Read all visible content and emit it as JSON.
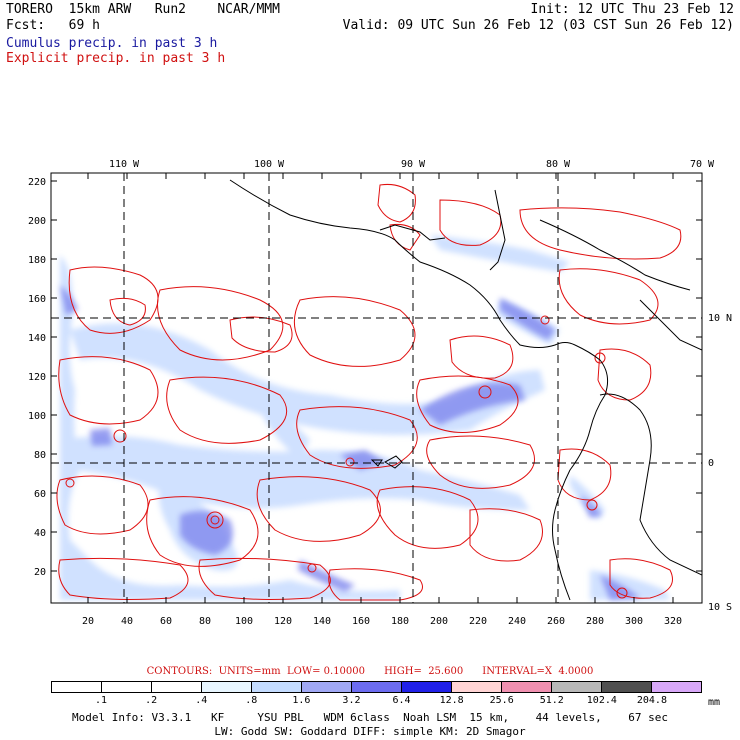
{
  "header": {
    "left_line1": "TORERO  15km ARW   Run2    NCAR/MMM",
    "left_line2": "Fcst:   69 h",
    "right_line1": "Init: 12 UTC Thu 23 Feb 12",
    "right_line2": "Valid: 09 UTC Sun 26 Feb 12 (03 CST Sun 26 Feb 12)",
    "cumulus_label": "Cumulus precip. in past 3 h",
    "explicit_label": "Explicit precip. in past 3 h"
  },
  "map": {
    "top_longitudes": [
      "110 W",
      "100 W",
      "90 W",
      "80 W",
      "70 W"
    ],
    "right_latitudes": [
      "10 N",
      "0",
      "10 S"
    ],
    "y_ticks": [
      "220",
      "200",
      "180",
      "160",
      "140",
      "120",
      "100",
      "80",
      "60",
      "40",
      "20"
    ],
    "x_ticks": [
      "20",
      "40",
      "60",
      "80",
      "100",
      "120",
      "140",
      "160",
      "180",
      "200",
      "220",
      "240",
      "260",
      "280",
      "300",
      "320"
    ],
    "colors": {
      "explicit_contour": "#e01010",
      "coastline": "#000000",
      "grid": "#000000"
    }
  },
  "legend": {
    "contours_text": "CONTOURS:  UNITS=mm  LOW= 0.10000      HIGH=  25.600      INTERVAL=X  4.0000",
    "units": "mm",
    "labels": [
      ".1",
      ".2",
      ".4",
      ".8",
      "1.6",
      "3.2",
      "6.4",
      "12.8",
      "25.6",
      "51.2",
      "102.4",
      "204.8"
    ],
    "colors": [
      "#ffffff",
      "#ffffff",
      "#ffffff",
      "#e8f6ff",
      "#c4dcff",
      "#a0a8f4",
      "#6c6cf0",
      "#2020e8",
      "#ffd4d4",
      "#f090b0",
      "#b8b8b8",
      "#505050",
      "#d8a8f8"
    ]
  },
  "footer": {
    "line1": "Model Info: V3.3.1   KF     YSU PBL   WDM 6class  Noah LSM  15 km,    44 levels,    67 sec",
    "line2": "LW: Godd SW: Goddard DIFF: simple KM: 2D Smagor"
  }
}
